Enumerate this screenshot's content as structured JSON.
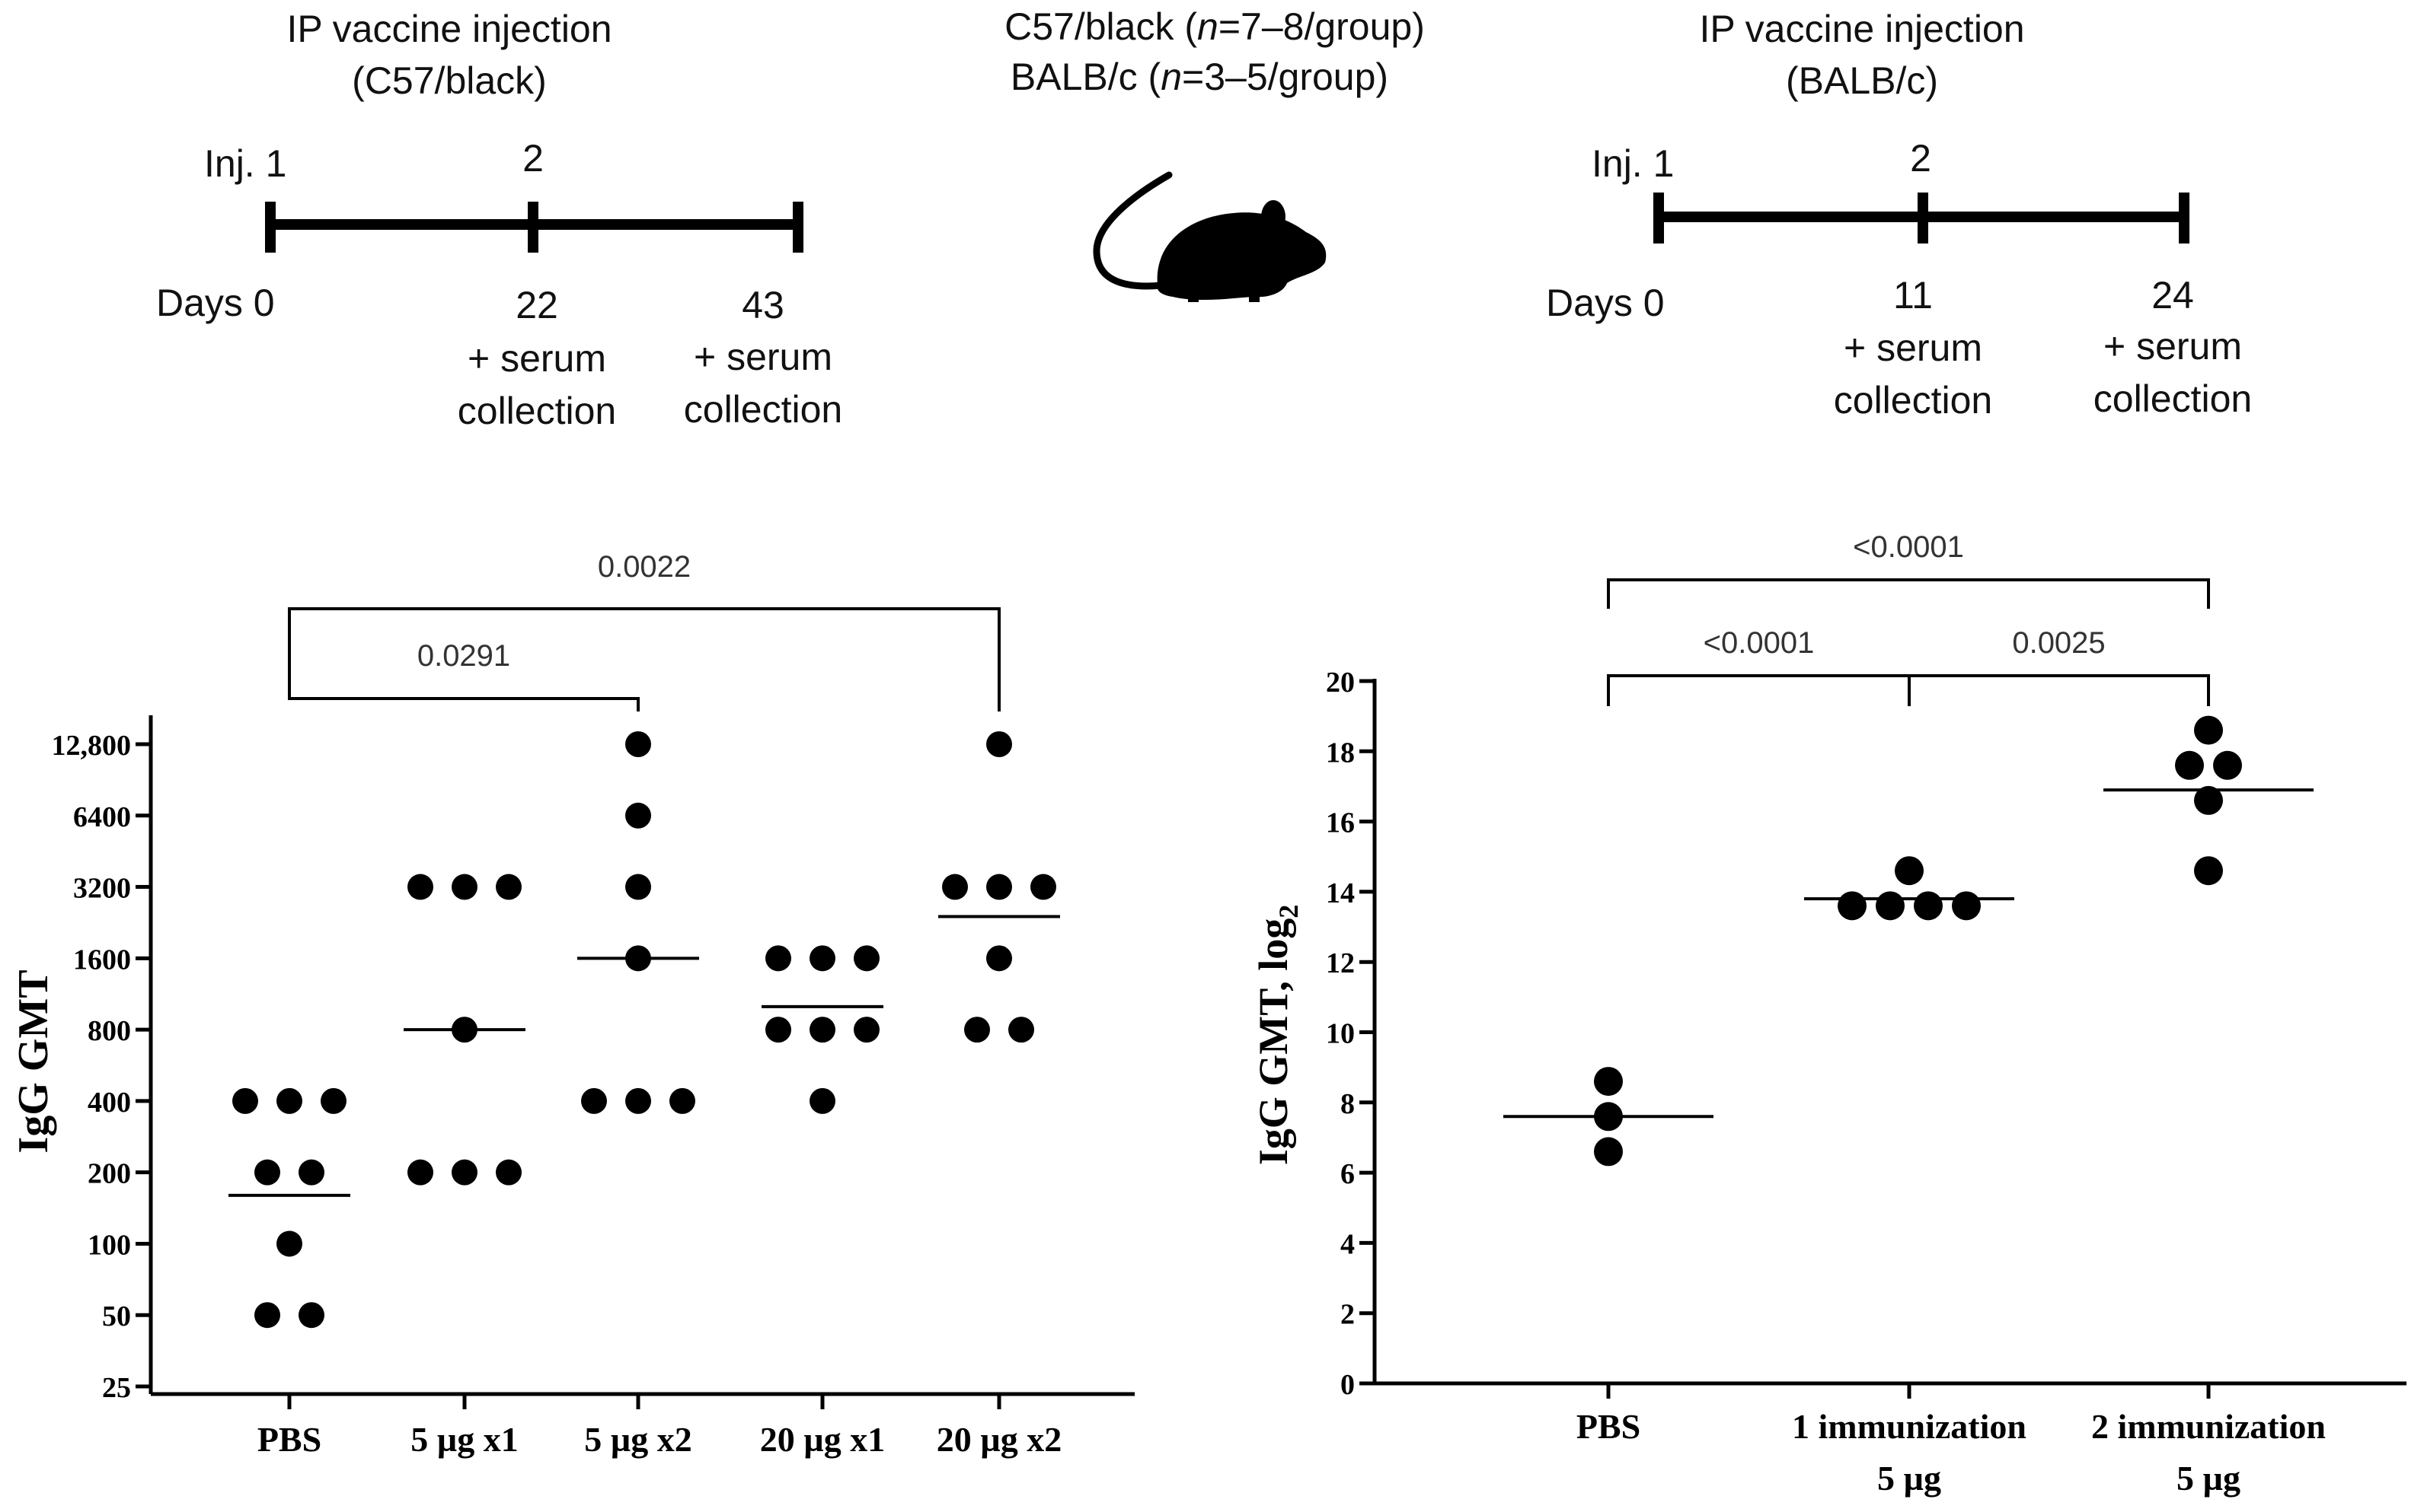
{
  "header": {
    "left": {
      "title_line1": "IP vaccine injection",
      "title_line2": "(C57/black)",
      "inj_label": "Inj. 1",
      "inj_2": "2",
      "days_label": "Days 0",
      "day_mid": "22",
      "day_end": "43",
      "serum_plus": "+ serum",
      "serum_collection": "collection"
    },
    "center": {
      "line1_strain": "C57/black (",
      "line1_n": "n",
      "line1_rest": "=7–8/group)",
      "line2_strain": "BALB/c (",
      "line2_n": "n",
      "line2_rest": "=3–5/group)"
    },
    "right": {
      "title_line1": "IP vaccine injection",
      "title_line2": "(BALB/c)",
      "inj_label": "Inj. 1",
      "inj_2": "2",
      "days_label": "Days 0",
      "day_mid": "11",
      "day_end": "24",
      "serum_plus": "+ serum",
      "serum_collection": "collection"
    }
  },
  "chart_data": [
    {
      "type": "scatter",
      "name": "C57/black IgG titers",
      "ylabel": "IgG GMT",
      "yscale": "log2",
      "ylim": [
        25,
        12800
      ],
      "yticks": [
        25,
        50,
        100,
        200,
        400,
        800,
        1600,
        3200,
        6400,
        12800
      ],
      "ytick_labels": [
        "25",
        "50",
        "100",
        "200",
        "400",
        "800",
        "1600",
        "3200",
        "6400",
        "12,800"
      ],
      "categories": [
        "PBS",
        "5 µg x1",
        "5 µg x2",
        "20 µg x1",
        "20 µg x2"
      ],
      "points": [
        [
          400,
          400,
          400,
          200,
          200,
          100,
          50,
          50
        ],
        [
          3200,
          3200,
          3200,
          800,
          200,
          200,
          200
        ],
        [
          12800,
          6400,
          3200,
          1600,
          400,
          400,
          400
        ],
        [
          1600,
          1600,
          1600,
          800,
          800,
          800,
          400
        ],
        [
          12800,
          3200,
          3200,
          3200,
          1600,
          800,
          800
        ]
      ],
      "medians": [
        160,
        800,
        1600,
        1000,
        2400
      ],
      "brackets": [
        {
          "from": "PBS",
          "to": "5 µg x2",
          "label": "0.0291"
        },
        {
          "from": "PBS",
          "to": "20 µg x2",
          "label": "0.0022"
        }
      ]
    },
    {
      "type": "scatter",
      "name": "BALB/c IgG titers",
      "ylabel": "IgG GMT, log",
      "ylabel_sub": "2",
      "ylim": [
        0,
        20
      ],
      "yticks": [
        0,
        2,
        4,
        6,
        8,
        10,
        12,
        14,
        16,
        18,
        20
      ],
      "ytick_labels": [
        "0",
        "2",
        "4",
        "6",
        "8",
        "10",
        "12",
        "14",
        "16",
        "18",
        "20"
      ],
      "categories": [
        "PBS",
        "1 immunization",
        "2 immunization"
      ],
      "category_sub": [
        "",
        "5 µg",
        "5 µg"
      ],
      "points": [
        [
          8.6,
          7.6,
          6.6
        ],
        [
          14.6,
          13.6,
          13.6,
          13.6,
          13.6
        ],
        [
          18.6,
          17.6,
          17.6,
          16.6,
          14.6
        ]
      ],
      "medians": [
        7.6,
        13.8,
        16.9
      ],
      "brackets": [
        {
          "from": "PBS",
          "to": "1 immunization",
          "label": "<0.0001"
        },
        {
          "from": "1 immunization",
          "to": "2 immunization",
          "label": "0.0025"
        },
        {
          "from": "PBS",
          "to": "2 immunization",
          "label": "<0.0001"
        }
      ]
    }
  ]
}
